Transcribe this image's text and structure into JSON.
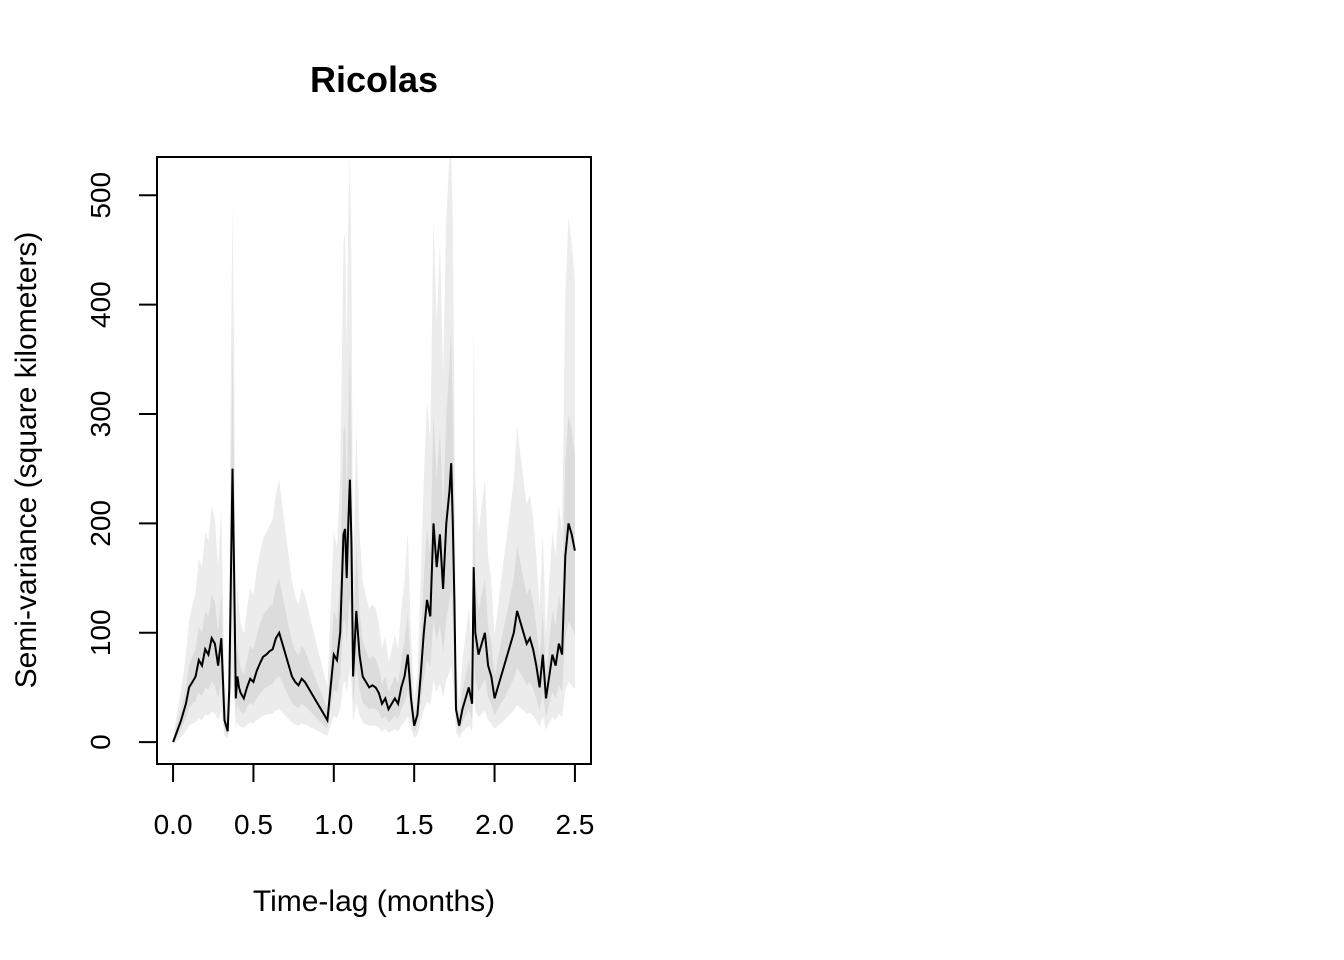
{
  "chart_data": {
    "type": "line",
    "title": "Ricolas",
    "xlabel": "Time-lag (months)",
    "ylabel": "Semi-variance (square kilometers)",
    "xlim": [
      -0.1,
      2.6
    ],
    "ylim": [
      -20,
      535
    ],
    "xticks": [
      0,
      0.5,
      1,
      1.5,
      2,
      2.5
    ],
    "xtick_labels": [
      "0.0",
      "0.5",
      "1.0",
      "1.5",
      "2.0",
      "2.5"
    ],
    "yticks": [
      0,
      100,
      200,
      300,
      400,
      500
    ],
    "ytick_labels": [
      "0",
      "100",
      "200",
      "300",
      "400",
      "500"
    ],
    "grid": false,
    "legend": "none",
    "colors": {
      "line": "#000000",
      "band_outer": "#ececec",
      "band_inner": "#dcdcdc",
      "axes": "#000000",
      "background": "#ffffff"
    },
    "series": [
      {
        "x": [
          0,
          0.02,
          0.05,
          0.08,
          0.1,
          0.12,
          0.14,
          0.16,
          0.18,
          0.2,
          0.22,
          0.24,
          0.26,
          0.28,
          0.3,
          0.32,
          0.34,
          0.35,
          0.36,
          0.37,
          0.38,
          0.39,
          0.4,
          0.41,
          0.42,
          0.44,
          0.46,
          0.48,
          0.5,
          0.52,
          0.54,
          0.56,
          0.58,
          0.6,
          0.62,
          0.64,
          0.66,
          0.68,
          0.7,
          0.72,
          0.74,
          0.76,
          0.78,
          0.8,
          0.82,
          0.84,
          0.86,
          0.88,
          0.9,
          0.92,
          0.94,
          0.96,
          0.98,
          1.0,
          1.02,
          1.04,
          1.06,
          1.07,
          1.08,
          1.09,
          1.1,
          1.11,
          1.12,
          1.14,
          1.16,
          1.18,
          1.2,
          1.22,
          1.24,
          1.26,
          1.28,
          1.3,
          1.32,
          1.34,
          1.36,
          1.38,
          1.4,
          1.42,
          1.44,
          1.46,
          1.48,
          1.5,
          1.52,
          1.54,
          1.56,
          1.58,
          1.6,
          1.62,
          1.64,
          1.66,
          1.68,
          1.7,
          1.72,
          1.73,
          1.74,
          1.75,
          1.76,
          1.78,
          1.8,
          1.82,
          1.84,
          1.86,
          1.87,
          1.88,
          1.9,
          1.92,
          1.94,
          1.96,
          1.98,
          2.0,
          2.02,
          2.04,
          2.06,
          2.08,
          2.1,
          2.12,
          2.14,
          2.16,
          2.18,
          2.2,
          2.22,
          2.24,
          2.26,
          2.28,
          2.3,
          2.32,
          2.34,
          2.36,
          2.38,
          2.4,
          2.42,
          2.44,
          2.46,
          2.48,
          2.5
        ],
        "y": [
          0,
          8,
          20,
          35,
          50,
          55,
          60,
          75,
          70,
          85,
          80,
          95,
          90,
          70,
          95,
          20,
          10,
          50,
          150,
          250,
          150,
          40,
          60,
          50,
          45,
          40,
          50,
          58,
          55,
          65,
          72,
          78,
          80,
          83,
          85,
          95,
          100,
          90,
          80,
          70,
          60,
          55,
          52,
          58,
          55,
          50,
          45,
          40,
          35,
          30,
          25,
          20,
          50,
          80,
          75,
          100,
          190,
          195,
          150,
          200,
          240,
          180,
          60,
          120,
          80,
          60,
          55,
          50,
          52,
          50,
          45,
          35,
          40,
          30,
          35,
          40,
          35,
          50,
          60,
          80,
          40,
          15,
          25,
          60,
          100,
          130,
          115,
          200,
          160,
          190,
          140,
          200,
          230,
          255,
          200,
          130,
          30,
          15,
          30,
          40,
          50,
          35,
          160,
          100,
          80,
          90,
          100,
          70,
          60,
          40,
          50,
          60,
          70,
          80,
          90,
          100,
          120,
          110,
          100,
          90,
          95,
          85,
          70,
          50,
          80,
          40,
          60,
          80,
          70,
          90,
          80,
          170,
          200,
          190,
          175
        ],
        "band_inner_low": [
          0,
          3,
          12,
          22,
          32,
          35,
          38,
          45,
          42,
          50,
          48,
          55,
          52,
          40,
          55,
          12,
          6,
          30,
          80,
          130,
          80,
          25,
          35,
          30,
          28,
          26,
          32,
          36,
          34,
          40,
          44,
          48,
          50,
          52,
          53,
          58,
          60,
          55,
          48,
          42,
          36,
          33,
          31,
          35,
          33,
          30,
          27,
          24,
          21,
          18,
          15,
          12,
          30,
          48,
          45,
          60,
          110,
          112,
          88,
          115,
          135,
          105,
          36,
          70,
          48,
          36,
          33,
          30,
          31,
          30,
          27,
          21,
          24,
          18,
          21,
          24,
          21,
          30,
          36,
          48,
          24,
          9,
          15,
          36,
          58,
          75,
          68,
          112,
          92,
          108,
          82,
          112,
          128,
          140,
          112,
          76,
          18,
          9,
          18,
          24,
          30,
          21,
          90,
          58,
          46,
          52,
          58,
          41,
          35,
          24,
          30,
          35,
          40,
          46,
          52,
          58,
          68,
          63,
          58,
          52,
          55,
          49,
          40,
          29,
          46,
          23,
          35,
          46,
          40,
          52,
          46,
          95,
          110,
          105,
          97
        ],
        "band_inner_high": [
          2,
          14,
          30,
          50,
          70,
          78,
          85,
          105,
          100,
          120,
          115,
          135,
          128,
          100,
          135,
          35,
          20,
          75,
          220,
          370,
          220,
          62,
          90,
          76,
          68,
          62,
          76,
          88,
          84,
          98,
          108,
          116,
          120,
          124,
          127,
          142,
          150,
          135,
          120,
          106,
          92,
          84,
          79,
          88,
          84,
          76,
          68,
          61,
          53,
          46,
          38,
          31,
          76,
          120,
          112,
          150,
          285,
          292,
          225,
          300,
          360,
          270,
          92,
          180,
          120,
          92,
          84,
          76,
          79,
          76,
          68,
          53,
          61,
          46,
          53,
          61,
          53,
          76,
          92,
          120,
          61,
          24,
          38,
          92,
          150,
          195,
          172,
          300,
          240,
          285,
          210,
          300,
          345,
          380,
          300,
          195,
          46,
          24,
          46,
          61,
          76,
          53,
          240,
          150,
          120,
          135,
          150,
          106,
          92,
          61,
          76,
          92,
          106,
          120,
          135,
          150,
          180,
          165,
          150,
          135,
          142,
          128,
          106,
          76,
          120,
          61,
          92,
          120,
          106,
          135,
          120,
          255,
          300,
          285,
          262
        ],
        "band_outer_low": [
          0,
          1,
          5,
          10,
          15,
          17,
          18,
          22,
          20,
          25,
          24,
          28,
          26,
          20,
          28,
          6,
          3,
          15,
          40,
          65,
          40,
          12,
          18,
          15,
          14,
          13,
          16,
          18,
          17,
          20,
          22,
          24,
          25,
          26,
          26,
          29,
          30,
          27,
          24,
          21,
          18,
          16,
          15,
          17,
          16,
          15,
          13,
          12,
          10,
          9,
          7,
          6,
          15,
          24,
          22,
          30,
          55,
          56,
          44,
          57,
          67,
          52,
          18,
          35,
          24,
          18,
          16,
          15,
          15,
          15,
          13,
          10,
          12,
          9,
          10,
          12,
          10,
          15,
          18,
          24,
          12,
          4,
          7,
          18,
          29,
          37,
          34,
          56,
          46,
          54,
          41,
          56,
          64,
          70,
          56,
          38,
          9,
          4,
          9,
          12,
          15,
          10,
          45,
          29,
          23,
          26,
          29,
          20,
          17,
          12,
          15,
          17,
          20,
          23,
          26,
          29,
          34,
          31,
          29,
          26,
          27,
          24,
          20,
          14,
          23,
          11,
          17,
          23,
          20,
          26,
          23,
          47,
          55,
          52,
          48
        ],
        "band_outer_high": [
          4,
          22,
          48,
          80,
          112,
          125,
          136,
          168,
          160,
          192,
          184,
          216,
          205,
          160,
          216,
          56,
          32,
          120,
          352,
          490,
          352,
          99,
          144,
          122,
          109,
          99,
          122,
          141,
          134,
          157,
          173,
          186,
          192,
          198,
          203,
          227,
          240,
          216,
          192,
          170,
          147,
          134,
          126,
          141,
          134,
          122,
          109,
          98,
          85,
          74,
          61,
          50,
          122,
          192,
          179,
          240,
          456,
          467,
          360,
          480,
          535,
          432,
          147,
          288,
          192,
          147,
          134,
          122,
          126,
          122,
          109,
          85,
          98,
          74,
          85,
          98,
          85,
          122,
          147,
          192,
          98,
          38,
          61,
          147,
          240,
          312,
          275,
          480,
          384,
          456,
          336,
          480,
          535,
          535,
          480,
          312,
          74,
          38,
          74,
          98,
          122,
          85,
          384,
          240,
          192,
          216,
          240,
          170,
          147,
          98,
          122,
          147,
          170,
          192,
          216,
          240,
          288,
          264,
          240,
          216,
          227,
          205,
          170,
          122,
          192,
          98,
          147,
          192,
          170,
          216,
          192,
          408,
          480,
          456,
          420
        ]
      }
    ]
  }
}
